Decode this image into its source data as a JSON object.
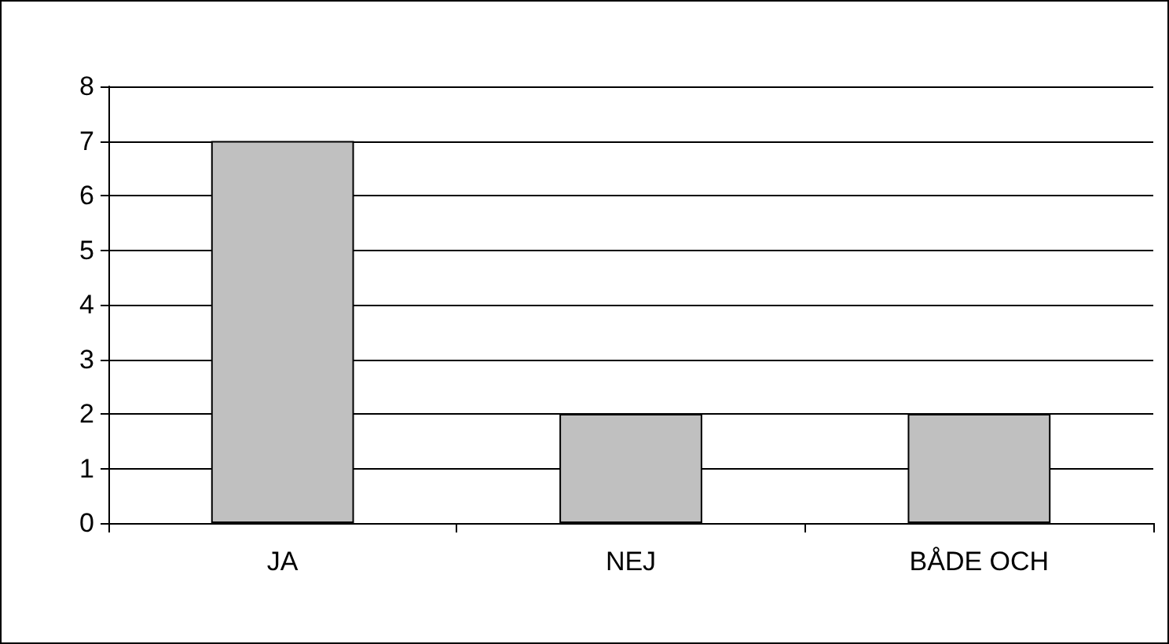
{
  "chart_data": {
    "type": "bar",
    "categories": [
      "JA",
      "NEJ",
      "BÅDE OCH"
    ],
    "values": [
      7,
      2,
      2
    ],
    "color": "#c0c0c0",
    "ylim": [
      0,
      8
    ],
    "yticks": [
      0,
      1,
      2,
      3,
      4,
      5,
      6,
      7,
      8
    ],
    "grid": "y"
  }
}
